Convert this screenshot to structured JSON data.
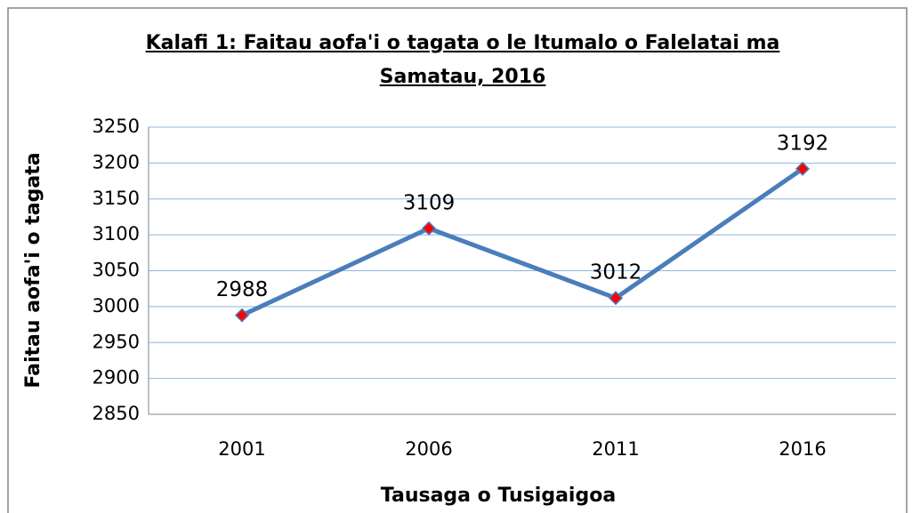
{
  "chart_data": {
    "type": "line",
    "title": "Kalafi 1: Faitau aofa'i o tagata o le Itumalo o Falelatai ma Samatau, 2016",
    "x_label": "Tausaga o Tusigaigoa",
    "y_label": "Faitau aofa'i o tagata",
    "categories": [
      "2001",
      "2006",
      "2011",
      "2016"
    ],
    "series": [
      {
        "name": "Faitau aofa'i o tagata",
        "color": "#4a7ebb",
        "marker_color": "#ff0000",
        "values": [
          2988,
          3109,
          3012,
          3192
        ]
      }
    ],
    "ylim": [
      2850,
      3250
    ],
    "yticks": [
      2850,
      2900,
      2950,
      3000,
      3050,
      3100,
      3150,
      3200,
      3250
    ],
    "grid": true
  }
}
